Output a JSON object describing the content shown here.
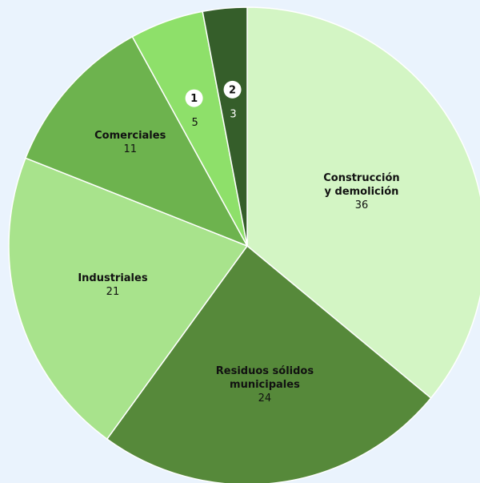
{
  "chart_data": {
    "type": "pie",
    "labels": [
      [
        "Construcción",
        "y demolición"
      ],
      [
        "Residuos sólidos",
        "municipales"
      ],
      [
        "Industriales"
      ],
      [
        "Comerciales"
      ],
      [
        "1"
      ],
      [
        "2"
      ]
    ],
    "values": [
      36,
      24,
      21,
      11,
      5,
      3
    ],
    "colors": [
      "#d3f5c4",
      "#56893a",
      "#a8e38c",
      "#6db34e",
      "#8ee06a",
      "#355e2a"
    ]
  }
}
